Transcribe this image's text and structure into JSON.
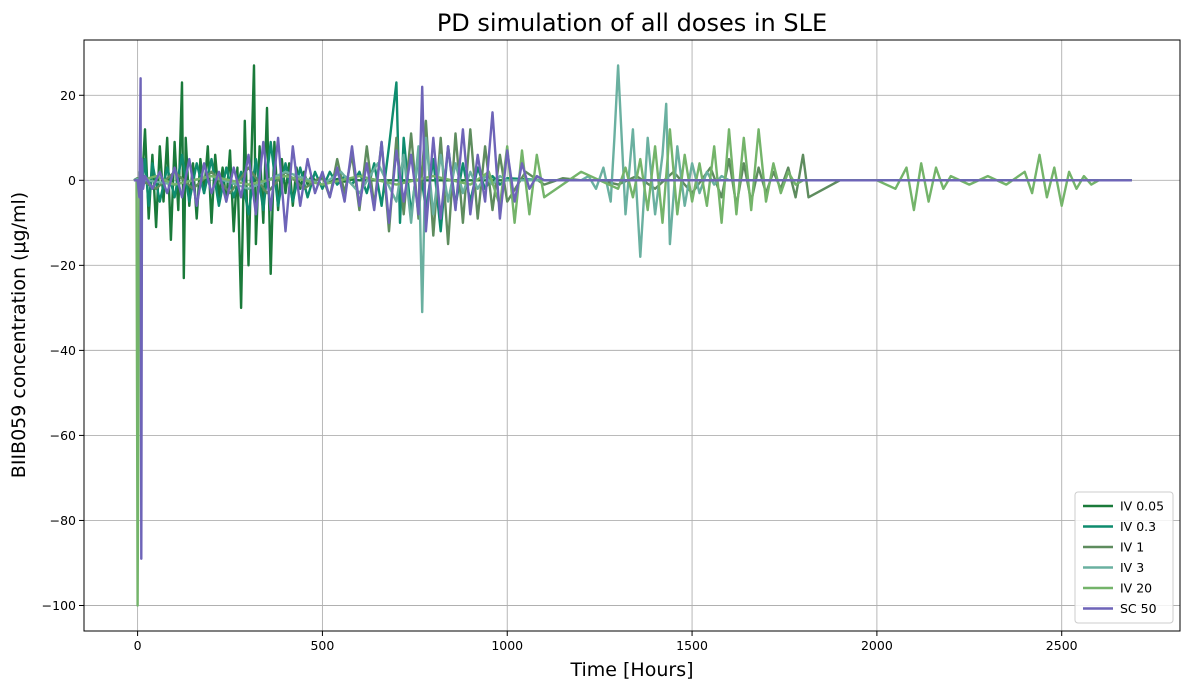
{
  "chart_data": {
    "type": "line",
    "title": "PD simulation of all doses in SLE",
    "xlabel": "Time [Hours]",
    "ylabel": "BIIB059 concentration (μg/ml)",
    "xlim": [
      -145,
      2820
    ],
    "ylim": [
      -106,
      33
    ],
    "xticks": [
      0,
      500,
      1000,
      1500,
      2000,
      2500
    ],
    "yticks": [
      -100,
      -80,
      -60,
      -40,
      -20,
      0,
      20
    ],
    "xtick_labels": [
      "0",
      "500",
      "1000",
      "1500",
      "2000",
      "2500"
    ],
    "ytick_labels": [
      "−100",
      "−80",
      "−60",
      "−40",
      "−20",
      "0",
      "20"
    ],
    "grid": true,
    "legend_position": "lower-right",
    "series": [
      {
        "name": "IV 0.05",
        "color": "#1a7a3a",
        "x": [
          -10,
          0,
          10,
          20,
          30,
          40,
          50,
          60,
          70,
          80,
          90,
          100,
          110,
          120,
          125,
          130,
          140,
          150,
          160,
          170,
          180,
          190,
          200,
          210,
          220,
          230,
          240,
          250,
          260,
          270,
          280,
          290,
          300,
          310,
          315,
          320,
          330,
          340,
          350,
          360,
          370,
          380,
          390,
          400,
          410,
          420,
          430,
          440,
          450,
          460,
          470,
          480,
          500,
          520,
          540,
          560,
          580,
          600,
          620,
          640,
          660,
          680,
          700,
          720,
          740,
          760,
          780,
          800,
          900,
          1000,
          1100,
          1200,
          1300,
          1400,
          1500,
          1600,
          1700,
          1800,
          1900,
          2000,
          2100,
          2200,
          2300,
          2400,
          2500,
          2600,
          2690
        ],
        "y": [
          0,
          0.5,
          -4,
          12,
          -9,
          6,
          -11,
          8,
          -5,
          10,
          -14,
          9,
          -7,
          23,
          -23,
          10,
          -6,
          4,
          -9,
          5,
          -3,
          8,
          -10,
          6,
          -4,
          3,
          -5,
          7,
          -12,
          3,
          -30,
          14,
          -20,
          12,
          27,
          -15,
          8,
          -10,
          17,
          -22,
          9,
          -7,
          5,
          -3,
          4,
          -6,
          3,
          -2,
          2,
          -1,
          1,
          0,
          0.5,
          -0.5,
          0.3,
          -0.3,
          0.2,
          0,
          0,
          0,
          0,
          0,
          0,
          0,
          0,
          0,
          0,
          0,
          0,
          0,
          0,
          0,
          0,
          0,
          0,
          0,
          0,
          0,
          0,
          0,
          0,
          0,
          0,
          0,
          0,
          0,
          0
        ]
      },
      {
        "name": "IV 0.3",
        "color": "#0f8c6e",
        "x": [
          -10,
          0,
          10,
          20,
          30,
          40,
          60,
          80,
          100,
          120,
          140,
          160,
          180,
          200,
          220,
          240,
          260,
          280,
          300,
          320,
          340,
          360,
          380,
          400,
          420,
          440,
          460,
          480,
          500,
          520,
          540,
          560,
          580,
          600,
          620,
          640,
          660,
          680,
          700,
          710,
          720,
          740,
          760,
          780,
          800,
          820,
          840,
          860,
          880,
          900,
          920,
          940,
          960,
          980,
          1000,
          1100,
          1200,
          1300,
          1400,
          1500,
          1600,
          1700,
          1800,
          1900,
          2000,
          2100,
          2200,
          2300,
          2400,
          2500,
          2600,
          2690
        ],
        "y": [
          0,
          0.5,
          -3,
          5,
          -6,
          4,
          -5,
          3,
          -4,
          6,
          -5,
          4,
          -3,
          5,
          -6,
          3,
          -4,
          2,
          -8,
          5,
          -7,
          9,
          -6,
          4,
          -5,
          3,
          -4,
          2,
          -2,
          2,
          -1,
          1,
          -1,
          2,
          -3,
          4,
          -6,
          8,
          23,
          -10,
          10,
          -8,
          6,
          -7,
          5,
          -12,
          8,
          -6,
          4,
          -5,
          3,
          -2,
          1,
          -1,
          0.5,
          0,
          0,
          0,
          0,
          0,
          0,
          0,
          0,
          0,
          0,
          0,
          0,
          0,
          0,
          0,
          0,
          0
        ]
      },
      {
        "name": "IV 1",
        "color": "#5e8c5e",
        "x": [
          -10,
          0,
          50,
          100,
          150,
          200,
          250,
          300,
          350,
          400,
          450,
          500,
          520,
          540,
          560,
          580,
          600,
          620,
          640,
          660,
          680,
          700,
          720,
          740,
          760,
          780,
          800,
          820,
          840,
          860,
          880,
          900,
          920,
          940,
          960,
          980,
          1000,
          1050,
          1100,
          1150,
          1200,
          1250,
          1300,
          1350,
          1400,
          1450,
          1500,
          1550,
          1580,
          1600,
          1620,
          1640,
          1660,
          1680,
          1700,
          1720,
          1740,
          1760,
          1780,
          1800,
          1815,
          1900,
          2000,
          2100,
          2200,
          2300,
          2400,
          2500,
          2600,
          2690
        ],
        "y": [
          0,
          0.5,
          -2,
          2,
          -2,
          2,
          -3,
          3,
          -3,
          2,
          -2,
          1,
          -4,
          5,
          -3,
          6,
          -7,
          8,
          -6,
          9,
          -12,
          10,
          -8,
          11,
          -9,
          14,
          -13,
          10,
          -15,
          11,
          -10,
          12,
          -9,
          8,
          -7,
          6,
          -5,
          2,
          -1,
          0.5,
          0,
          0,
          -1,
          1,
          -2,
          2,
          -3,
          3,
          -4,
          5,
          -6,
          4,
          -5,
          3,
          -3,
          2,
          -2,
          3,
          -4,
          6,
          -4,
          0,
          0,
          0,
          0,
          0,
          0,
          0,
          0,
          0
        ]
      },
      {
        "name": "IV 3",
        "color": "#6ab0a0",
        "x": [
          -10,
          0,
          100,
          200,
          300,
          400,
          500,
          550,
          600,
          650,
          700,
          720,
          740,
          760,
          770,
          780,
          800,
          820,
          840,
          860,
          880,
          900,
          920,
          940,
          960,
          980,
          1000,
          1050,
          1100,
          1150,
          1200,
          1220,
          1240,
          1260,
          1280,
          1290,
          1300,
          1320,
          1340,
          1360,
          1380,
          1400,
          1420,
          1430,
          1440,
          1460,
          1480,
          1500,
          1520,
          1540,
          1560,
          1580,
          1600,
          1700,
          1800,
          1900,
          2000,
          2100,
          2200,
          2300,
          2400,
          2500,
          2600,
          2690
        ],
        "y": [
          0,
          0.3,
          -1,
          1,
          -2,
          2,
          -1,
          2,
          -3,
          4,
          -5,
          6,
          -10,
          8,
          -31,
          10,
          -8,
          6,
          -5,
          4,
          -3,
          2,
          -2,
          1,
          -1,
          1,
          0,
          0,
          0,
          0,
          0,
          1,
          -2,
          3,
          -5,
          10,
          27,
          -8,
          12,
          -18,
          10,
          -8,
          6,
          18,
          -15,
          8,
          -6,
          4,
          -3,
          2,
          -1,
          1,
          0,
          0,
          0,
          0,
          0,
          0,
          0,
          0,
          0,
          0,
          0,
          0
        ]
      },
      {
        "name": "IV 20",
        "color": "#74b46a",
        "x": [
          -10,
          -3,
          0,
          5,
          10,
          50,
          100,
          200,
          300,
          400,
          500,
          600,
          700,
          800,
          900,
          950,
          980,
          1000,
          1020,
          1040,
          1060,
          1080,
          1100,
          1200,
          1300,
          1320,
          1340,
          1360,
          1380,
          1400,
          1420,
          1440,
          1460,
          1480,
          1500,
          1520,
          1540,
          1560,
          1580,
          1600,
          1620,
          1640,
          1660,
          1680,
          1700,
          1720,
          1740,
          1760,
          1780,
          1800,
          1900,
          2000,
          2050,
          2080,
          2100,
          2120,
          2140,
          2160,
          2180,
          2200,
          2250,
          2300,
          2350,
          2400,
          2420,
          2440,
          2460,
          2480,
          2500,
          2520,
          2540,
          2560,
          2580,
          2600,
          2690
        ],
        "y": [
          0,
          0,
          -100,
          2,
          0,
          1,
          -1,
          1,
          -1,
          1,
          -1,
          1,
          -1,
          1,
          -1,
          2,
          -6,
          8,
          -10,
          7,
          -8,
          6,
          -4,
          2,
          -2,
          3,
          -4,
          5,
          -7,
          8,
          -10,
          12,
          -8,
          6,
          -5,
          4,
          -6,
          8,
          -10,
          12,
          -8,
          10,
          -7,
          12,
          -5,
          4,
          -3,
          2,
          -1,
          0,
          0,
          0,
          -2,
          3,
          -7,
          4,
          -5,
          3,
          -2,
          1,
          -1,
          1,
          -1,
          2,
          -3,
          6,
          -4,
          3,
          -6,
          2,
          -2,
          1,
          -1,
          0,
          0
        ]
      },
      {
        "name": "SC 50",
        "color": "#6e64b8",
        "x": [
          -10,
          0,
          5,
          8,
          10,
          12,
          15,
          20,
          40,
          60,
          80,
          100,
          120,
          140,
          160,
          180,
          200,
          220,
          240,
          260,
          280,
          300,
          320,
          340,
          360,
          380,
          400,
          420,
          440,
          460,
          480,
          500,
          520,
          540,
          560,
          580,
          600,
          620,
          640,
          660,
          680,
          700,
          720,
          740,
          760,
          770,
          780,
          800,
          820,
          840,
          860,
          880,
          900,
          920,
          940,
          960,
          980,
          1000,
          1020,
          1040,
          1060,
          1080,
          1100,
          1200,
          1300,
          1400,
          1500,
          1600,
          1700,
          1800,
          1900,
          2000,
          2100,
          2200,
          2300,
          2400,
          2500,
          2600,
          2690
        ],
        "y": [
          0,
          0,
          -4,
          24,
          -89,
          5,
          -2,
          1,
          -2,
          2,
          -3,
          3,
          -4,
          5,
          -6,
          4,
          -3,
          2,
          -5,
          3,
          -4,
          6,
          -8,
          9,
          -7,
          10,
          -12,
          8,
          -6,
          5,
          -3,
          2,
          -4,
          3,
          -5,
          8,
          -6,
          4,
          -7,
          9,
          -10,
          7,
          -5,
          6,
          -8,
          22,
          -12,
          10,
          -9,
          8,
          -7,
          12,
          -8,
          6,
          -5,
          16,
          -9,
          7,
          -5,
          4,
          -2,
          1,
          0,
          0,
          0,
          0,
          0,
          0,
          0,
          0,
          0,
          0,
          0,
          0,
          0,
          0,
          0,
          0,
          0
        ]
      }
    ]
  }
}
